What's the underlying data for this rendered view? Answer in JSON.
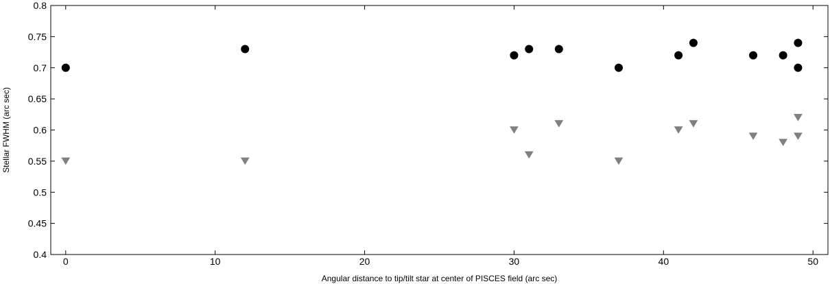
{
  "chart_data": {
    "type": "scatter",
    "title": "",
    "xlabel": "Angular distance to tip/tilt star at center of PISCES field (arc sec)",
    "ylabel": "Stellar FWHM (arc sec)",
    "xlim": [
      -1,
      51
    ],
    "ylim": [
      0.4,
      0.8
    ],
    "x_ticks": [
      "0",
      "10",
      "20",
      "30",
      "40",
      "50"
    ],
    "x_tick_values": [
      0,
      10,
      20,
      30,
      40,
      50
    ],
    "y_ticks": [
      "0.4",
      "0.45",
      "0.5",
      "0.55",
      "0.6",
      "0.65",
      "0.7",
      "0.75",
      "0.8"
    ],
    "y_tick_values": [
      0.4,
      0.45,
      0.5,
      0.55,
      0.6,
      0.65,
      0.7,
      0.75,
      0.8
    ],
    "grid": false,
    "legend": "none",
    "series": [
      {
        "marker": "circle",
        "color": "#000000",
        "points": [
          {
            "x": 0,
            "y": 0.7
          },
          {
            "x": 12,
            "y": 0.73
          },
          {
            "x": 30,
            "y": 0.72
          },
          {
            "x": 31,
            "y": 0.73
          },
          {
            "x": 33,
            "y": 0.73
          },
          {
            "x": 37,
            "y": 0.7
          },
          {
            "x": 41,
            "y": 0.72
          },
          {
            "x": 42,
            "y": 0.74
          },
          {
            "x": 46,
            "y": 0.72
          },
          {
            "x": 48,
            "y": 0.72
          },
          {
            "x": 49,
            "y": 0.74
          },
          {
            "x": 49,
            "y": 0.7
          }
        ]
      },
      {
        "marker": "triangle-down",
        "color": "#808080",
        "points": [
          {
            "x": 0,
            "y": 0.55
          },
          {
            "x": 12,
            "y": 0.55
          },
          {
            "x": 30,
            "y": 0.6
          },
          {
            "x": 31,
            "y": 0.56
          },
          {
            "x": 33,
            "y": 0.61
          },
          {
            "x": 37,
            "y": 0.55
          },
          {
            "x": 41,
            "y": 0.6
          },
          {
            "x": 42,
            "y": 0.61
          },
          {
            "x": 46,
            "y": 0.59
          },
          {
            "x": 48,
            "y": 0.58
          },
          {
            "x": 49,
            "y": 0.62
          },
          {
            "x": 49,
            "y": 0.59
          }
        ]
      }
    ]
  }
}
